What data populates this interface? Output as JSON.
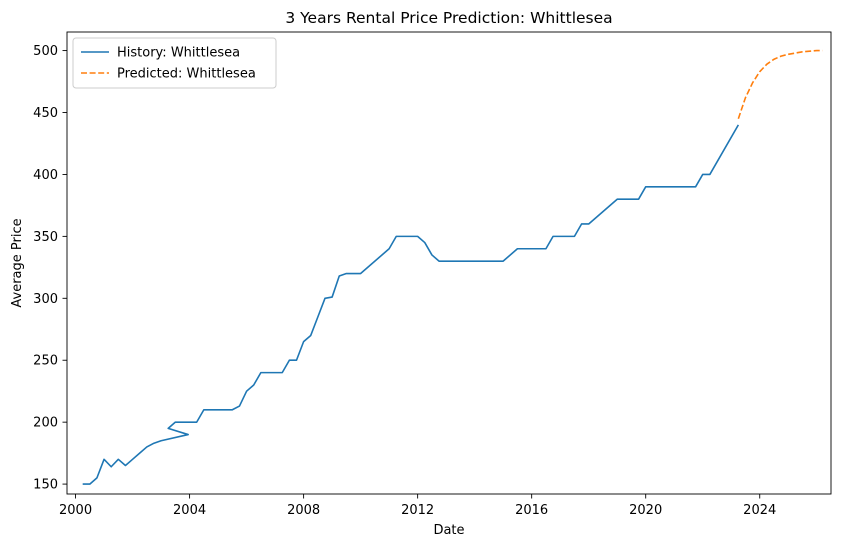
{
  "chart_data": {
    "type": "line",
    "title": "3 Years Rental Price Prediction: Whittlesea",
    "xlabel": "Date",
    "ylabel": "Average Price",
    "xlim": [
      1999.7,
      2026.5
    ],
    "ylim": [
      142,
      515
    ],
    "x_ticks": [
      {
        "value": 2000,
        "label": "2000"
      },
      {
        "value": 2004,
        "label": "2004"
      },
      {
        "value": 2008,
        "label": "2008"
      },
      {
        "value": 2012,
        "label": "2012"
      },
      {
        "value": 2016,
        "label": "2016"
      },
      {
        "value": 2020,
        "label": "2020"
      },
      {
        "value": 2024,
        "label": "2024"
      }
    ],
    "y_ticks": [
      {
        "value": 150,
        "label": "150"
      },
      {
        "value": 200,
        "label": "200"
      },
      {
        "value": 250,
        "label": "250"
      },
      {
        "value": 300,
        "label": "300"
      },
      {
        "value": 350,
        "label": "350"
      },
      {
        "value": 400,
        "label": "400"
      },
      {
        "value": 450,
        "label": "450"
      },
      {
        "value": 500,
        "label": "500"
      }
    ],
    "grid": false,
    "legend_position": "top-left",
    "series": [
      {
        "name": "History: Whittlesea",
        "color": "#1f77b4",
        "style": "solid",
        "points": [
          [
            2000.25,
            150
          ],
          [
            2000.5,
            150
          ],
          [
            2000.75,
            155
          ],
          [
            2001.0,
            170
          ],
          [
            2001.25,
            164
          ],
          [
            2001.5,
            170
          ],
          [
            2001.75,
            165
          ],
          [
            2002.0,
            170
          ],
          [
            2002.25,
            175
          ],
          [
            2002.5,
            180
          ],
          [
            2002.75,
            183
          ],
          [
            2003.0,
            185
          ],
          [
            2003.95,
            190
          ],
          [
            2003.25,
            195
          ],
          [
            2003.5,
            200
          ],
          [
            2004.0,
            200
          ],
          [
            2004.25,
            200
          ],
          [
            2004.5,
            210
          ],
          [
            2005.0,
            210
          ],
          [
            2005.5,
            210
          ],
          [
            2005.75,
            213
          ],
          [
            2006.0,
            225
          ],
          [
            2006.25,
            230
          ],
          [
            2006.5,
            240
          ],
          [
            2007.0,
            240
          ],
          [
            2007.25,
            240
          ],
          [
            2007.5,
            250
          ],
          [
            2007.75,
            250
          ],
          [
            2008.0,
            265
          ],
          [
            2008.25,
            270
          ],
          [
            2008.5,
            285
          ],
          [
            2008.75,
            300
          ],
          [
            2009.0,
            301
          ],
          [
            2009.25,
            318
          ],
          [
            2009.5,
            320
          ],
          [
            2010.0,
            320
          ],
          [
            2011.0,
            340
          ],
          [
            2011.25,
            350
          ],
          [
            2011.5,
            350
          ],
          [
            2012.0,
            350
          ],
          [
            2012.25,
            345
          ],
          [
            2012.5,
            335
          ],
          [
            2012.75,
            330
          ],
          [
            2013.5,
            330
          ],
          [
            2015.0,
            330
          ],
          [
            2015.5,
            340
          ],
          [
            2016.0,
            340
          ],
          [
            2016.5,
            340
          ],
          [
            2016.75,
            350
          ],
          [
            2017.0,
            350
          ],
          [
            2017.5,
            350
          ],
          [
            2017.75,
            360
          ],
          [
            2018.0,
            360
          ],
          [
            2019.0,
            380
          ],
          [
            2019.25,
            380
          ],
          [
            2019.75,
            380
          ],
          [
            2020.0,
            390
          ],
          [
            2020.5,
            390
          ],
          [
            2021.75,
            390
          ],
          [
            2022.0,
            400
          ],
          [
            2022.25,
            400
          ],
          [
            2023.25,
            440
          ]
        ]
      },
      {
        "name": "Predicted: Whittlesea",
        "color": "#ff7f0e",
        "style": "dashed",
        "points": [
          [
            2023.25,
            445
          ],
          [
            2023.5,
            462
          ],
          [
            2023.75,
            474
          ],
          [
            2024.0,
            483
          ],
          [
            2024.25,
            489
          ],
          [
            2024.5,
            493
          ],
          [
            2024.75,
            495.5
          ],
          [
            2025.0,
            497
          ],
          [
            2025.25,
            498
          ],
          [
            2025.5,
            499
          ],
          [
            2025.75,
            499.5
          ],
          [
            2026.0,
            500
          ],
          [
            2026.2,
            500
          ]
        ]
      }
    ]
  }
}
